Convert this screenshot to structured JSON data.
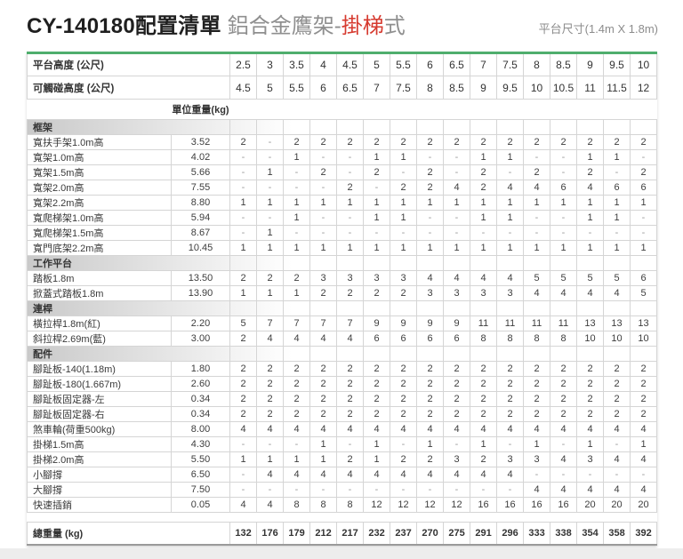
{
  "header": {
    "title": "CY-140180配置清單",
    "product_gray": "鋁合金鷹架-",
    "product_red": "掛梯",
    "product_tail": "式",
    "platform_size": "平台尺寸(1.4m X 1.8m)"
  },
  "colors": {
    "accent_green": "#4fae6d",
    "accent_red": "#d63a2f",
    "table_border": "#d5d5d5",
    "section_gradient_gray": "#c9c9c9"
  },
  "table": {
    "platform_height_label": "平台高度 (公尺)",
    "platform_heights": [
      "2.5",
      "3",
      "3.5",
      "4",
      "4.5",
      "5",
      "5.5",
      "6",
      "6.5",
      "7",
      "7.5",
      "8",
      "8.5",
      "9",
      "9.5",
      "10"
    ],
    "reach_height_label": "可觸碰高度 (公尺)",
    "reach_heights": [
      "4.5",
      "5",
      "5.5",
      "6",
      "6.5",
      "7",
      "7.5",
      "8",
      "8.5",
      "9",
      "9.5",
      "10",
      "10.5",
      "11",
      "11.5",
      "12"
    ],
    "unit_weight_label": "單位重量(kg)",
    "sections": [
      {
        "name": "框架",
        "rows": [
          {
            "item": "寬扶手架1.0m高",
            "weight": "3.52",
            "qty": [
              "2",
              "-",
              "2",
              "2",
              "2",
              "2",
              "2",
              "2",
              "2",
              "2",
              "2",
              "2",
              "2",
              "2",
              "2",
              "2"
            ]
          },
          {
            "item": "寬架1.0m高",
            "weight": "4.02",
            "qty": [
              "-",
              "-",
              "1",
              "-",
              "-",
              "1",
              "1",
              "-",
              "-",
              "1",
              "1",
              "-",
              "-",
              "1",
              "1",
              "-"
            ]
          },
          {
            "item": "寬架1.5m高",
            "weight": "5.66",
            "qty": [
              "-",
              "1",
              "-",
              "2",
              "-",
              "2",
              "-",
              "2",
              "-",
              "2",
              "-",
              "2",
              "-",
              "2",
              "-",
              "2"
            ]
          },
          {
            "item": "寬架2.0m高",
            "weight": "7.55",
            "qty": [
              "-",
              "-",
              "-",
              "-",
              "2",
              "-",
              "2",
              "2",
              "4",
              "2",
              "4",
              "4",
              "6",
              "4",
              "6",
              "6"
            ]
          },
          {
            "item": "寬架2.2m高",
            "weight": "8.80",
            "qty": [
              "1",
              "1",
              "1",
              "1",
              "1",
              "1",
              "1",
              "1",
              "1",
              "1",
              "1",
              "1",
              "1",
              "1",
              "1",
              "1"
            ]
          },
          {
            "item": "寬爬梯架1.0m高",
            "weight": "5.94",
            "qty": [
              "-",
              "-",
              "1",
              "-",
              "-",
              "1",
              "1",
              "-",
              "-",
              "1",
              "1",
              "-",
              "-",
              "1",
              "1",
              "-"
            ]
          },
          {
            "item": "寬爬梯架1.5m高",
            "weight": "8.67",
            "qty": [
              "-",
              "1",
              "-",
              "-",
              "-",
              "-",
              "-",
              "-",
              "-",
              "-",
              "-",
              "-",
              "-",
              "-",
              "-",
              "-"
            ]
          },
          {
            "item": "寬門底架2.2m高",
            "weight": "10.45",
            "qty": [
              "1",
              "1",
              "1",
              "1",
              "1",
              "1",
              "1",
              "1",
              "1",
              "1",
              "1",
              "1",
              "1",
              "1",
              "1",
              "1"
            ]
          }
        ]
      },
      {
        "name": "工作平台",
        "rows": [
          {
            "item": "踏板1.8m",
            "weight": "13.50",
            "qty": [
              "2",
              "2",
              "2",
              "3",
              "3",
              "3",
              "3",
              "4",
              "4",
              "4",
              "4",
              "5",
              "5",
              "5",
              "5",
              "6"
            ]
          },
          {
            "item": "掀蓋式踏板1.8m",
            "weight": "13.90",
            "qty": [
              "1",
              "1",
              "1",
              "2",
              "2",
              "2",
              "2",
              "3",
              "3",
              "3",
              "3",
              "4",
              "4",
              "4",
              "4",
              "5"
            ]
          }
        ]
      },
      {
        "name": "連桿",
        "rows": [
          {
            "item": "橫拉桿1.8m(紅)",
            "weight": "2.20",
            "qty": [
              "5",
              "7",
              "7",
              "7",
              "7",
              "9",
              "9",
              "9",
              "9",
              "11",
              "11",
              "11",
              "11",
              "13",
              "13",
              "13"
            ]
          },
          {
            "item": "斜拉桿2.69m(藍)",
            "weight": "3.00",
            "qty": [
              "2",
              "4",
              "4",
              "4",
              "4",
              "6",
              "6",
              "6",
              "6",
              "8",
              "8",
              "8",
              "8",
              "10",
              "10",
              "10"
            ]
          }
        ]
      },
      {
        "name": "配件",
        "rows": [
          {
            "item": "腳趾板-140(1.18m)",
            "weight": "1.80",
            "qty": [
              "2",
              "2",
              "2",
              "2",
              "2",
              "2",
              "2",
              "2",
              "2",
              "2",
              "2",
              "2",
              "2",
              "2",
              "2",
              "2"
            ]
          },
          {
            "item": "腳趾板-180(1.667m)",
            "weight": "2.60",
            "qty": [
              "2",
              "2",
              "2",
              "2",
              "2",
              "2",
              "2",
              "2",
              "2",
              "2",
              "2",
              "2",
              "2",
              "2",
              "2",
              "2"
            ]
          },
          {
            "item": "腳趾板固定器-左",
            "weight": "0.34",
            "qty": [
              "2",
              "2",
              "2",
              "2",
              "2",
              "2",
              "2",
              "2",
              "2",
              "2",
              "2",
              "2",
              "2",
              "2",
              "2",
              "2"
            ]
          },
          {
            "item": "腳趾板固定器-右",
            "weight": "0.34",
            "qty": [
              "2",
              "2",
              "2",
              "2",
              "2",
              "2",
              "2",
              "2",
              "2",
              "2",
              "2",
              "2",
              "2",
              "2",
              "2",
              "2"
            ]
          },
          {
            "item": "煞車輪(荷重500kg)",
            "weight": "8.00",
            "qty": [
              "4",
              "4",
              "4",
              "4",
              "4",
              "4",
              "4",
              "4",
              "4",
              "4",
              "4",
              "4",
              "4",
              "4",
              "4",
              "4"
            ]
          },
          {
            "item": "掛梯1.5m高",
            "weight": "4.30",
            "qty": [
              "-",
              "-",
              "-",
              "1",
              "-",
              "1",
              "-",
              "1",
              "-",
              "1",
              "-",
              "1",
              "-",
              "1",
              "-",
              "1"
            ]
          },
          {
            "item": "掛梯2.0m高",
            "weight": "5.50",
            "qty": [
              "1",
              "1",
              "1",
              "1",
              "2",
              "1",
              "2",
              "2",
              "3",
              "2",
              "3",
              "3",
              "4",
              "3",
              "4",
              "4"
            ]
          },
          {
            "item": "小腳撐",
            "weight": "6.50",
            "qty": [
              "-",
              "4",
              "4",
              "4",
              "4",
              "4",
              "4",
              "4",
              "4",
              "4",
              "4",
              "-",
              "-",
              "-",
              "-",
              "-"
            ]
          },
          {
            "item": "大腳撐",
            "weight": "7.50",
            "qty": [
              "-",
              "-",
              "-",
              "-",
              "-",
              "-",
              "-",
              "-",
              "-",
              "-",
              "-",
              "4",
              "4",
              "4",
              "4",
              "4"
            ]
          },
          {
            "item": "快速插銷",
            "weight": "0.05",
            "qty": [
              "4",
              "4",
              "8",
              "8",
              "8",
              "12",
              "12",
              "12",
              "12",
              "16",
              "16",
              "16",
              "16",
              "20",
              "20",
              "20"
            ]
          }
        ]
      }
    ],
    "total": {
      "label": "總重量 (kg)",
      "values": [
        "132",
        "176",
        "179",
        "212",
        "217",
        "232",
        "237",
        "270",
        "275",
        "291",
        "296",
        "333",
        "338",
        "354",
        "358",
        "392"
      ]
    }
  }
}
